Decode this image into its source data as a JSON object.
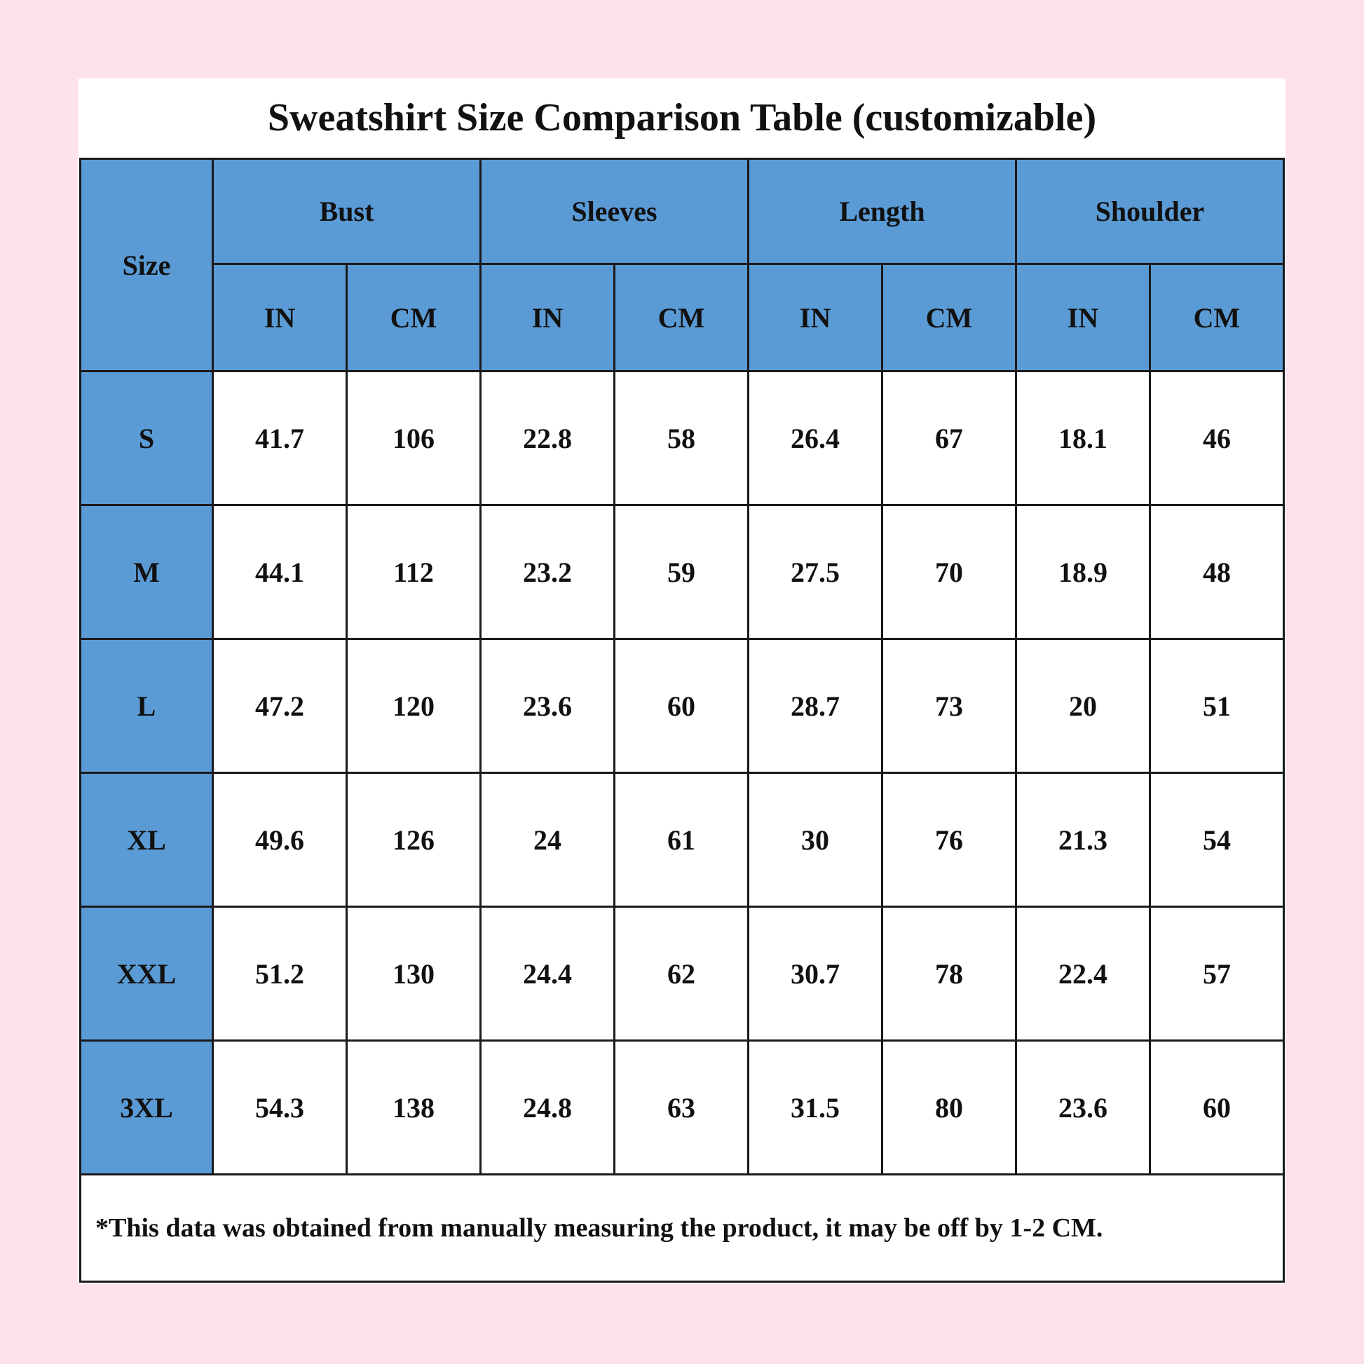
{
  "title": "Sweatshirt Size Comparison Table (customizable)",
  "colors": {
    "header_fill": "#5b9bd5",
    "background": "#fde1ec"
  },
  "headers": {
    "size": "Size",
    "groups": [
      "Bust",
      "Sleeves",
      "Length",
      "Shoulder"
    ],
    "units": [
      "IN",
      "CM",
      "IN",
      "CM",
      "IN",
      "CM",
      "IN",
      "CM"
    ]
  },
  "rows": [
    {
      "size": "S",
      "values": [
        "41.7",
        "106",
        "22.8",
        "58",
        "26.4",
        "67",
        "18.1",
        "46"
      ]
    },
    {
      "size": "M",
      "values": [
        "44.1",
        "112",
        "23.2",
        "59",
        "27.5",
        "70",
        "18.9",
        "48"
      ]
    },
    {
      "size": "L",
      "values": [
        "47.2",
        "120",
        "23.6",
        "60",
        "28.7",
        "73",
        "20",
        "51"
      ]
    },
    {
      "size": "XL",
      "values": [
        "49.6",
        "126",
        "24",
        "61",
        "30",
        "76",
        "21.3",
        "54"
      ]
    },
    {
      "size": "XXL",
      "values": [
        "51.2",
        "130",
        "24.4",
        "62",
        "30.7",
        "78",
        "22.4",
        "57"
      ]
    },
    {
      "size": "3XL",
      "values": [
        "54.3",
        "138",
        "24.8",
        "63",
        "31.5",
        "80",
        "23.6",
        "60"
      ]
    }
  ],
  "footnote": "*This data was obtained from manually measuring the product, it may be off by 1-2 CM."
}
